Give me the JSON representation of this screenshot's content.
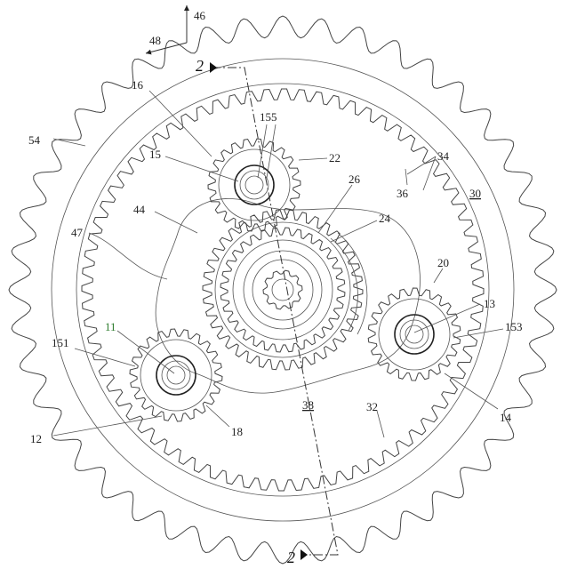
{
  "figure": {
    "section_markers": {
      "top": "2",
      "bottom": "2"
    },
    "labels": {
      "r46": "46",
      "r48": "48",
      "r16": "16",
      "r155": "155",
      "r54": "54",
      "r15": "15",
      "r22": "22",
      "r34": "34",
      "r36": "36",
      "r30": "30",
      "r26": "26",
      "r44": "44",
      "r24": "24",
      "r47": "47",
      "r20": "20",
      "r13": "13",
      "r11": "11",
      "r153": "153",
      "r151": "151",
      "r38": "38",
      "r32": "32",
      "r14": "14",
      "r12": "12",
      "r18": "18"
    },
    "colors": {
      "line": "#333333",
      "label_green": "#2f7d2f"
    }
  }
}
